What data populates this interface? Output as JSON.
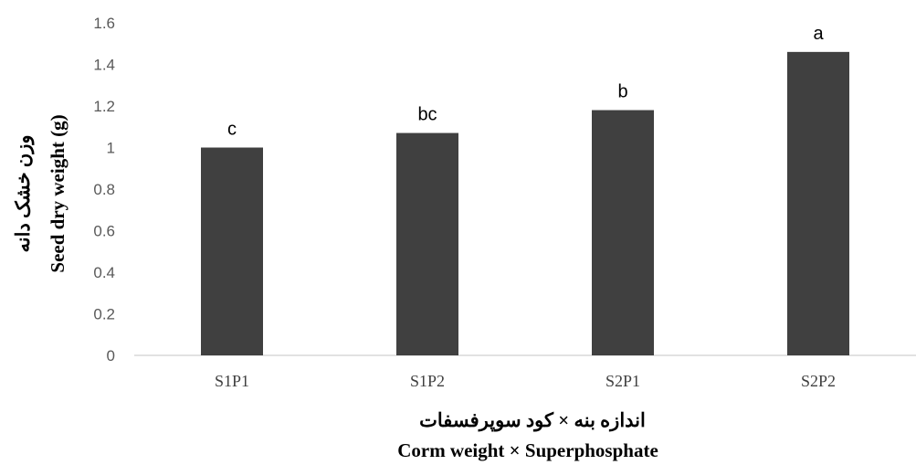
{
  "chart_data": {
    "type": "bar",
    "categories": [
      "S1P1",
      "S1P2",
      "S2P1",
      "S2P2"
    ],
    "values": [
      1.0,
      1.07,
      1.18,
      1.46
    ],
    "data_labels": [
      "c",
      "bc",
      "b",
      "a"
    ],
    "ylim": [
      0,
      1.6
    ],
    "yticks": [
      0,
      0.2,
      0.4,
      0.6,
      0.8,
      1,
      1.2,
      1.4,
      1.6
    ],
    "ytick_labels": [
      "0",
      "0.2",
      "0.4",
      "0.6",
      "0.8",
      "1",
      "1.2",
      "1.4",
      "1.6"
    ],
    "ylabel_fa": "وزن خشک دانه",
    "ylabel": "Seed dry weight (g)",
    "xlabel_fa": "اندازه بنه × کود سوپرفسفات",
    "xlabel": "Corm weight × Superphosphate",
    "bar_color": "#404040",
    "axis_color": "#d9d9d9",
    "grid": false,
    "legend": "none"
  }
}
